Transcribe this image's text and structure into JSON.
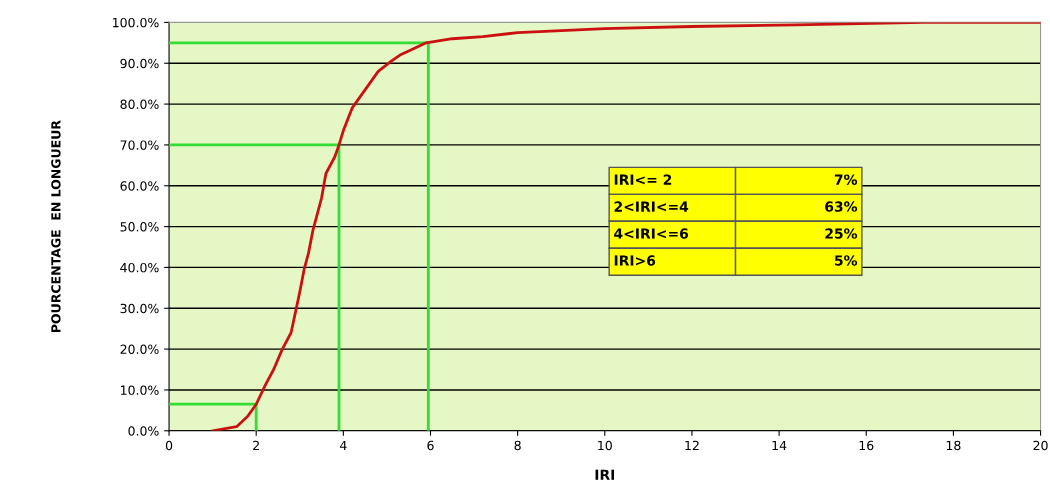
{
  "chart_data": {
    "type": "line",
    "xlabel": "IRI",
    "ylabel": "POURCENTAGE  EN LONGUEUR",
    "xlim": [
      0,
      20
    ],
    "xticks": [
      0,
      2,
      4,
      6,
      8,
      10,
      12,
      14,
      16,
      18,
      20
    ],
    "ylim": [
      0,
      100
    ],
    "yticks": [
      {
        "value": 0,
        "label": "0.0%"
      },
      {
        "value": 10,
        "label": "10.0%"
      },
      {
        "value": 20,
        "label": "20.0%"
      },
      {
        "value": 30,
        "label": "30.0%"
      },
      {
        "value": 40,
        "label": "40.0%"
      },
      {
        "value": 50,
        "label": "50.0%"
      },
      {
        "value": 60,
        "label": "60.0%"
      },
      {
        "value": 70,
        "label": "70.0%"
      },
      {
        "value": 80,
        "label": "80.0%"
      },
      {
        "value": 90,
        "label": "90.0%"
      },
      {
        "value": 100,
        "label": "100.0%"
      }
    ],
    "grid": "y",
    "legend": false,
    "series": [
      {
        "color": "#cc1010",
        "x": [
          1.0,
          1.55,
          1.8,
          2.0,
          2.2,
          2.4,
          2.6,
          2.8,
          2.9,
          3.0,
          3.1,
          3.2,
          3.3,
          3.4,
          3.5,
          3.6,
          3.8,
          3.9,
          4.0,
          4.2,
          4.4,
          4.6,
          4.8,
          5.1,
          5.3,
          5.5,
          5.9,
          6.5,
          7.2,
          8.0,
          10.0,
          12.0,
          14.4,
          17.3,
          20.0
        ],
        "values": [
          0,
          1,
          3.5,
          6.5,
          11,
          15,
          20,
          24,
          29,
          34,
          39.5,
          43.5,
          49,
          53,
          57,
          63,
          67,
          70,
          73.5,
          79,
          82,
          85,
          88,
          90.5,
          92,
          93,
          95,
          96,
          96.5,
          97.5,
          98.5,
          99,
          99.4,
          100,
          100
        ]
      },
      {
        "color": "#33dd33",
        "x": [
          0,
          2,
          2
        ],
        "values": [
          6.5,
          6.5,
          0
        ]
      },
      {
        "color": "#33dd33",
        "x": [
          0,
          3.9,
          3.9
        ],
        "values": [
          70,
          70,
          0
        ]
      },
      {
        "color": "#33dd33",
        "x": [
          0,
          5.95,
          5.95
        ],
        "values": [
          95,
          95,
          0
        ]
      }
    ],
    "annotations": [
      "IRI<= 2",
      "7%",
      "2<IRI<=4",
      "63%",
      "4<IRI<=6",
      "25%",
      "IRI>6",
      "5%"
    ]
  }
}
